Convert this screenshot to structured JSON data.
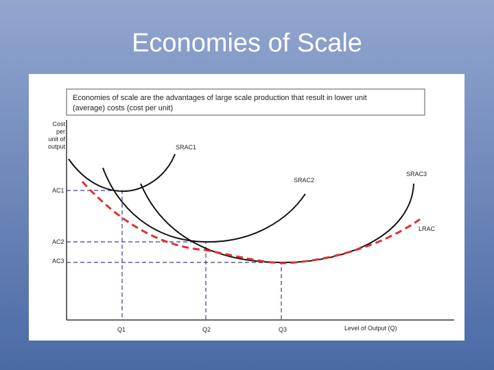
{
  "title": "Economies of Scale",
  "definition": {
    "lines": [
      "Economies of scale are the advantages of large scale production that result in lower unit",
      "(average) costs (cost per unit)"
    ]
  },
  "axes": {
    "y_label": [
      "Cost",
      "per",
      "unit of",
      "output"
    ],
    "x_label": "Level of Output (Q)"
  },
  "curves": {
    "srac1": "SRAC1",
    "srac2": "SRAC2",
    "srac3": "SRAC3",
    "lrac": "LRAC"
  },
  "levels": {
    "ac": [
      "AC1",
      "AC2",
      "AC3"
    ],
    "q": [
      "Q1",
      "Q2",
      "Q3"
    ]
  }
}
